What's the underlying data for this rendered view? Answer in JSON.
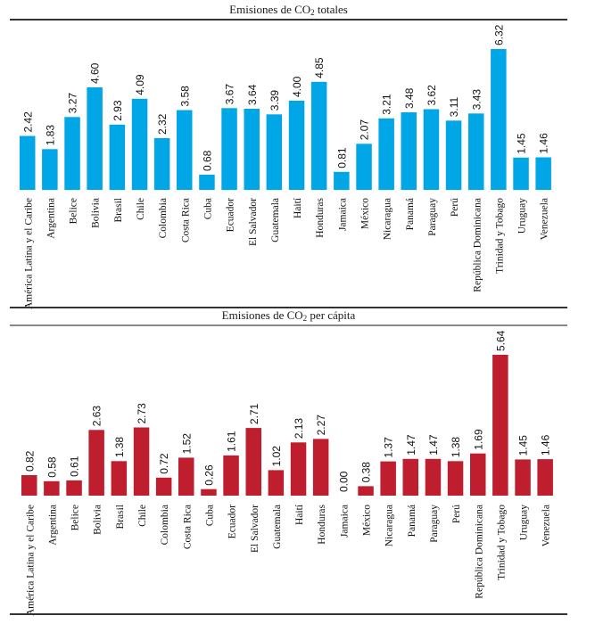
{
  "chart_data": [
    {
      "type": "bar",
      "title": "Emisiones de CO2 totales",
      "title_parts": {
        "pre": "Emisiones de CO",
        "sub": "2",
        "post": " totales"
      },
      "xlabel": "",
      "ylabel": "",
      "ylim": [
        0,
        6.32
      ],
      "grid": false,
      "legend": "none",
      "bar_color": "#00a6e6",
      "categories": [
        "América Latina y el Caribe",
        "Argentina",
        "Belice",
        "Bolivia",
        "Brasil",
        "Chile",
        "Colombia",
        "Costa Rica",
        "Cuba",
        "Ecuador",
        "El Salvador",
        "Guatemala",
        "Haití",
        "Honduras",
        "Jamaica",
        "México",
        "Nicaragua",
        "Panamá",
        "Paraguay",
        "Perú",
        "República Dominicana",
        "Trinidad y Tobago",
        "Uruguay",
        "Venezuela"
      ],
      "values": [
        2.42,
        1.83,
        3.27,
        4.6,
        2.93,
        4.09,
        2.32,
        3.58,
        0.68,
        3.67,
        3.64,
        3.39,
        4.0,
        4.85,
        0.81,
        2.07,
        3.21,
        3.48,
        3.62,
        3.11,
        3.43,
        6.32,
        1.45,
        1.46
      ],
      "value_labels": [
        "2.42",
        "1.83",
        "3.27",
        "4.60",
        "2.93",
        "4.09",
        "2.32",
        "3.58",
        "0.68",
        "3.67",
        "3.64",
        "3.39",
        "4.00",
        "4.85",
        "0.81",
        "2.07",
        "3.21",
        "3.48",
        "3.62",
        "3.11",
        "3.43",
        "6.32",
        "1.45",
        "1.46"
      ]
    },
    {
      "type": "bar",
      "title": "Emisiones de CO2 per cápita",
      "title_parts": {
        "pre": "Emisiones de CO",
        "sub": "2",
        "post": " per cápita"
      },
      "xlabel": "",
      "ylabel": "",
      "ylim": [
        0,
        5.64
      ],
      "grid": false,
      "legend": "none",
      "bar_color": "#be1e2d",
      "categories": [
        "América Latina y el Caribe",
        "Argentina",
        "Belice",
        "Bolivia",
        "Brasil",
        "Chile",
        "Colombia",
        "Costa Rica",
        "Cuba",
        "Ecuador",
        "El Salvador",
        "Guatemala",
        "Haití",
        "Honduras",
        "Jamaica",
        "México",
        "Nicaragua",
        "Panamá",
        "Paraguay",
        "Perú",
        "República Dominicana",
        "Trinidad y Tobago",
        "Uruguay",
        "Venezuela"
      ],
      "values": [
        0.82,
        0.58,
        0.61,
        2.63,
        1.38,
        2.73,
        0.72,
        1.52,
        0.26,
        1.61,
        2.71,
        1.02,
        2.13,
        2.27,
        0.0,
        0.38,
        1.37,
        1.47,
        1.47,
        1.38,
        1.69,
        5.64,
        1.45,
        1.46
      ],
      "value_labels": [
        "0.82",
        "0.58",
        "0.61",
        "2.63",
        "1.38",
        "2.73",
        "0.72",
        "1.52",
        "0.26",
        "1.61",
        "2.71",
        "1.02",
        "2.13",
        "2.27",
        "0.00",
        "0.38",
        "1.37",
        "1.47",
        "1.47",
        "1.38",
        "1.69",
        "5.64",
        "1.45",
        "1.46"
      ]
    }
  ]
}
